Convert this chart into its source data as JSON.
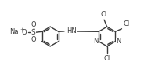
{
  "bg_color": "#ffffff",
  "line_color": "#3a3a3a",
  "text_color": "#3a3a3a",
  "line_width": 1.0,
  "font_size": 6.0,
  "fig_width": 1.84,
  "fig_height": 0.93,
  "dpi": 100,
  "xlim": [
    0,
    9.2
  ],
  "ylim": [
    0,
    4.6
  ]
}
